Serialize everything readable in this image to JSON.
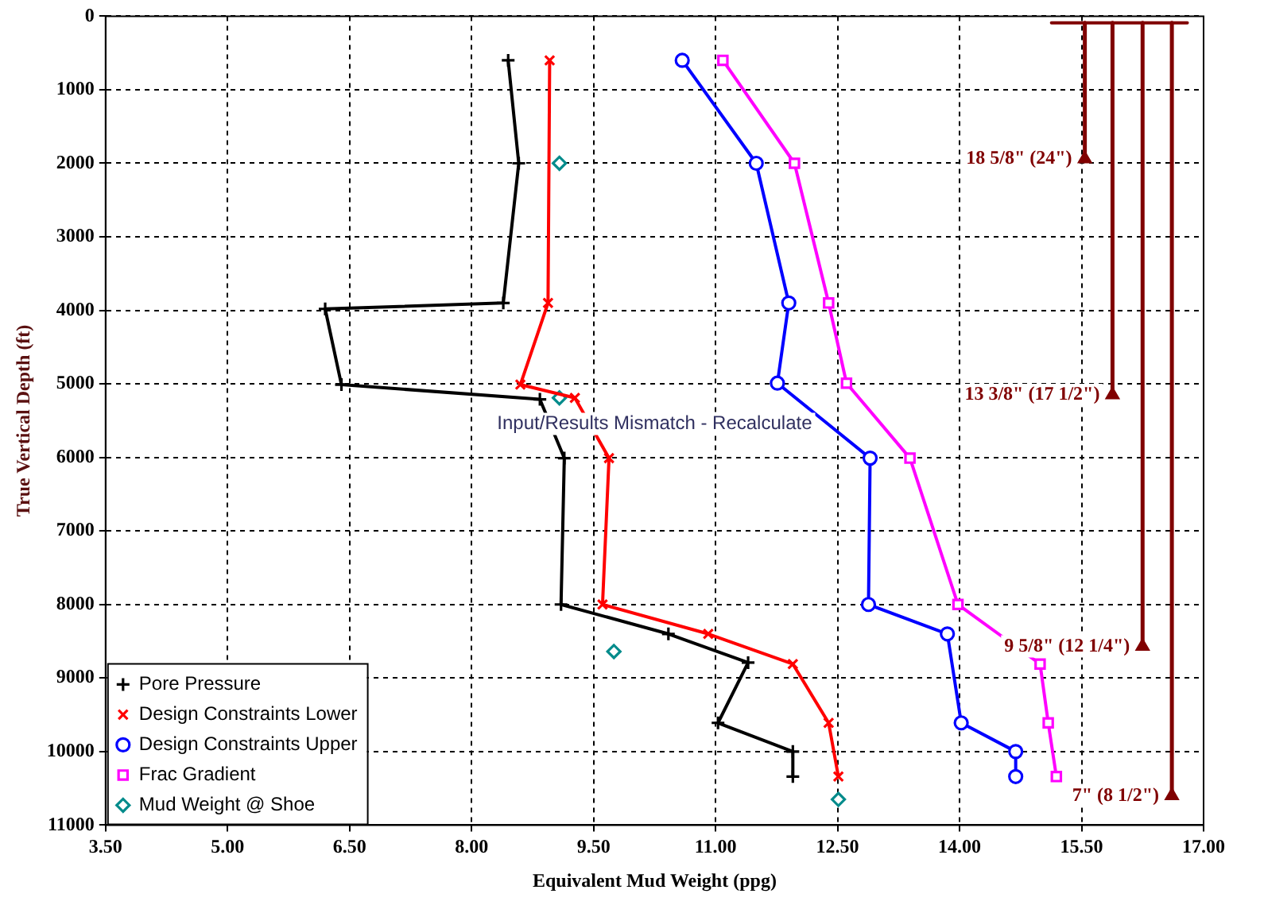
{
  "chart_data": {
    "type": "line",
    "xlabel": "Equivalent Mud Weight (ppg)",
    "ylabel": "True Vertical Depth (ft)",
    "xlim": [
      3.5,
      17
    ],
    "xticks": [
      {
        "value": 3.5,
        "label": "3.50"
      },
      {
        "value": 5,
        "label": "5.00"
      },
      {
        "value": 6.5,
        "label": "6.50"
      },
      {
        "value": 8,
        "label": "8.00"
      },
      {
        "value": 9.5,
        "label": "9.50"
      },
      {
        "value": 11,
        "label": "11.00"
      },
      {
        "value": 12.5,
        "label": "12.50"
      },
      {
        "value": 14,
        "label": "14.00"
      },
      {
        "value": 15.5,
        "label": "15.50"
      },
      {
        "value": 17,
        "label": "17.00"
      }
    ],
    "ylim": [
      11000,
      0
    ],
    "yticks": [
      0,
      1000,
      2000,
      3000,
      4000,
      5000,
      6000,
      7000,
      8000,
      9000,
      10000,
      11000
    ],
    "grid": true,
    "legend": "bottom left",
    "series": [
      {
        "name": "Pore Pressure",
        "type": "line",
        "marker": "cross",
        "color": "#000000",
        "x": [
          8.45,
          8.58,
          8.39,
          6.2,
          6.4,
          8.84,
          9.14,
          9.1,
          10.42,
          11.4,
          11.03,
          11.95,
          11.95
        ],
        "values": [
          600,
          2000,
          3900,
          3980,
          5010,
          5210,
          6010,
          8000,
          8400,
          8790,
          9610,
          10000,
          10340
        ]
      },
      {
        "name": "Design Constraints Lower",
        "type": "line",
        "marker": "x",
        "color": "#ff0000",
        "x": [
          8.96,
          8.94,
          8.6,
          9.27,
          9.69,
          9.61,
          10.91,
          11.95,
          12.39,
          12.51
        ],
        "values": [
          600,
          3900,
          5010,
          5190,
          6010,
          8000,
          8400,
          8810,
          9610,
          10340
        ]
      },
      {
        "name": "Design Constraints Upper",
        "type": "line",
        "marker": "circle",
        "color": "#0000ff",
        "x": [
          10.59,
          11.5,
          11.9,
          11.76,
          12.9,
          12.88,
          13.85,
          14.02,
          14.69,
          14.69
        ],
        "values": [
          600,
          2000,
          3900,
          4990,
          6010,
          8000,
          8400,
          9610,
          10000,
          10340
        ]
      },
      {
        "name": "Frac Gradient",
        "type": "line",
        "marker": "square",
        "color": "#ff00ff",
        "x": [
          11.09,
          11.97,
          12.39,
          12.61,
          13.39,
          13.98,
          14.99,
          15.09,
          15.19
        ],
        "values": [
          600,
          2000,
          3900,
          4990,
          6010,
          8000,
          8810,
          9610,
          10340
        ]
      },
      {
        "name": "Mud Weight @ Shoe",
        "type": "scatter",
        "marker": "diamond",
        "color": "#008b8b",
        "x": [
          9.08,
          9.08,
          9.75,
          12.51
        ],
        "values": [
          2000,
          5190,
          8640,
          10650
        ]
      },
      {
        "marker": "none",
        "color": "#800000",
        "x": [
          15.13,
          16.8
        ],
        "values": [
          90,
          90
        ]
      },
      {
        "name": "18 5/8\" (24\")",
        "marker": "triangle",
        "color": "#800000",
        "x": [
          15.54,
          15.54
        ],
        "values": [
          90,
          1940
        ]
      },
      {
        "name": "13 3/8\" (17 1/2\")",
        "marker": "triangle",
        "color": "#800000",
        "x": [
          15.88,
          15.88
        ],
        "values": [
          90,
          5150
        ]
      },
      {
        "name": "9 5/8\" (12 1/4\")",
        "marker": "triangle",
        "color": "#800000",
        "x": [
          16.25,
          16.25
        ],
        "values": [
          90,
          8570
        ]
      },
      {
        "name": "7\" (8 1/2\")",
        "marker": "triangle",
        "color": "#800000",
        "x": [
          16.61,
          16.61
        ],
        "values": [
          90,
          10600
        ]
      }
    ],
    "annotations": [
      "Input/Results Mismatch - Recalculate"
    ]
  }
}
